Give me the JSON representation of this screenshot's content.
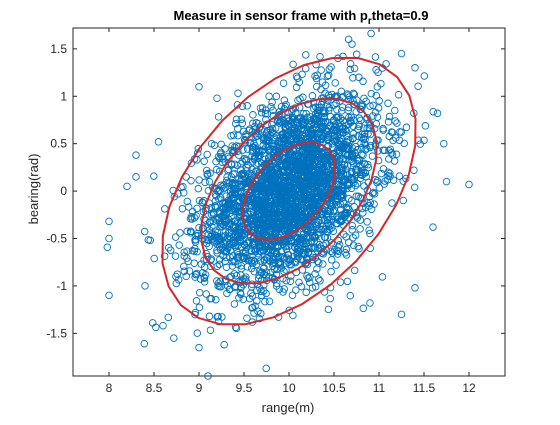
{
  "chart_data": {
    "type": "scatter",
    "title": {
      "prefix": "Measure in sensor frame with p",
      "subscript": "r",
      "suffix": "theta=0.9"
    },
    "xlabel": "range(m)",
    "ylabel": "bearing(rad)",
    "xlim": [
      7.6,
      12.4
    ],
    "ylim": [
      -1.95,
      1.72
    ],
    "xticks": [
      8,
      8.5,
      9,
      9.5,
      10,
      10.5,
      11,
      11.5,
      12
    ],
    "xtick_labels": [
      "8",
      "8.5",
      "9",
      "9.5",
      "10",
      "10.5",
      "11",
      "11.5",
      "12"
    ],
    "yticks": [
      -1.5,
      -1,
      -0.5,
      0,
      0.5,
      1,
      1.5
    ],
    "ytick_labels": [
      "-1.5",
      "-1",
      "-0.5",
      "0",
      "0.5",
      "1",
      "1.5"
    ],
    "grid": false,
    "legend": "none",
    "scatter": {
      "marker": "circle-open",
      "color": "#0072BD",
      "count": 3000,
      "mean": [
        10,
        0
      ],
      "std": [
        0.5,
        0.5
      ],
      "correlation": 0.4,
      "outliers": [
        {
          "x": 8.0,
          "y": -0.32
        },
        {
          "x": 8.0,
          "y": -0.5
        },
        {
          "x": 8.0,
          "y": -1.1
        },
        {
          "x": 8.2,
          "y": 0.05
        },
        {
          "x": 8.3,
          "y": 0.38
        },
        {
          "x": 8.3,
          "y": 0.15
        },
        {
          "x": 8.4,
          "y": -1.0
        },
        {
          "x": 8.55,
          "y": 0.52
        },
        {
          "x": 8.6,
          "y": -1.42
        },
        {
          "x": 8.72,
          "y": -1.55
        },
        {
          "x": 9.0,
          "y": -1.65
        },
        {
          "x": 9.28,
          "y": -1.62
        },
        {
          "x": 9.1,
          "y": -1.95
        },
        {
          "x": 9.0,
          "y": 1.1
        },
        {
          "x": 9.2,
          "y": 0.98
        },
        {
          "x": 10.7,
          "y": 1.55
        },
        {
          "x": 11.72,
          "y": 0.5
        },
        {
          "x": 11.75,
          "y": 0.1
        },
        {
          "x": 11.65,
          "y": 0.82
        },
        {
          "x": 12.0,
          "y": 0.07
        },
        {
          "x": 11.4,
          "y": 1.3
        },
        {
          "x": 10.6,
          "y": 1.42
        },
        {
          "x": 11.25,
          "y": 1.45
        },
        {
          "x": 11.6,
          "y": -0.38
        },
        {
          "x": 11.4,
          "y": -1.02
        },
        {
          "x": 11.25,
          "y": -1.3
        },
        {
          "x": 10.9,
          "y": -1.18
        }
      ]
    },
    "contours": {
      "color": "#D62728",
      "width": 2,
      "center": [
        10,
        0
      ],
      "angle_deg": 45,
      "levels": [
        {
          "semi_major": 0.62,
          "semi_minor": 0.38
        },
        {
          "semi_major": 1.18,
          "semi_minor": 0.72
        },
        {
          "semi_major": 1.7,
          "semi_minor": 1.05
        }
      ]
    }
  }
}
